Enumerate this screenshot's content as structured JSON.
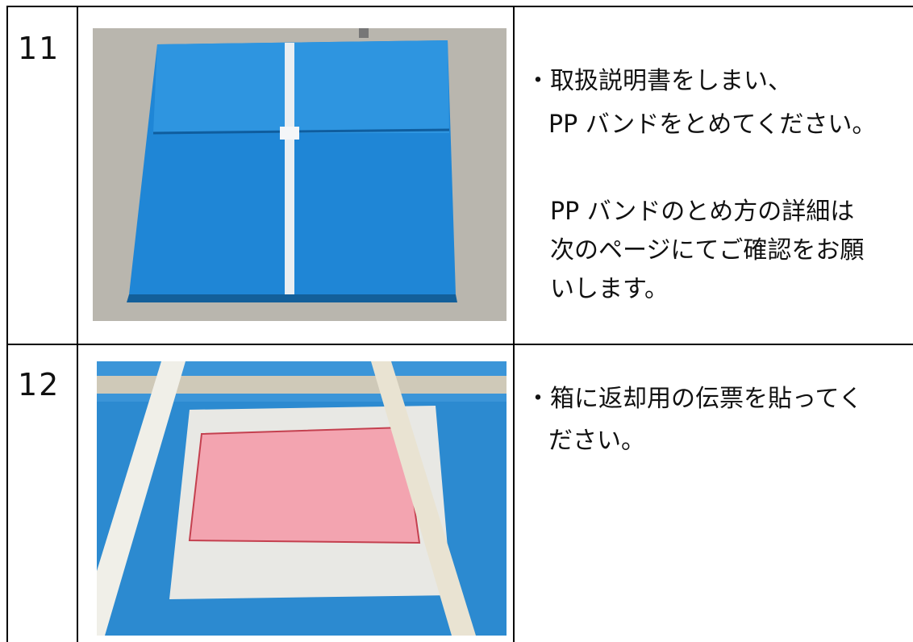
{
  "rows": [
    {
      "number": "11",
      "lines": [
        "・取扱説明書をしまい、",
        "PP バンドをとめてください。"
      ],
      "note": [
        "PP バンドのとめ方の詳細は",
        "次のページにてご確認をお願",
        "いします。"
      ]
    },
    {
      "number": "12",
      "lines": [
        "・箱に返却用の伝票を貼ってく",
        "ださい。"
      ]
    }
  ]
}
